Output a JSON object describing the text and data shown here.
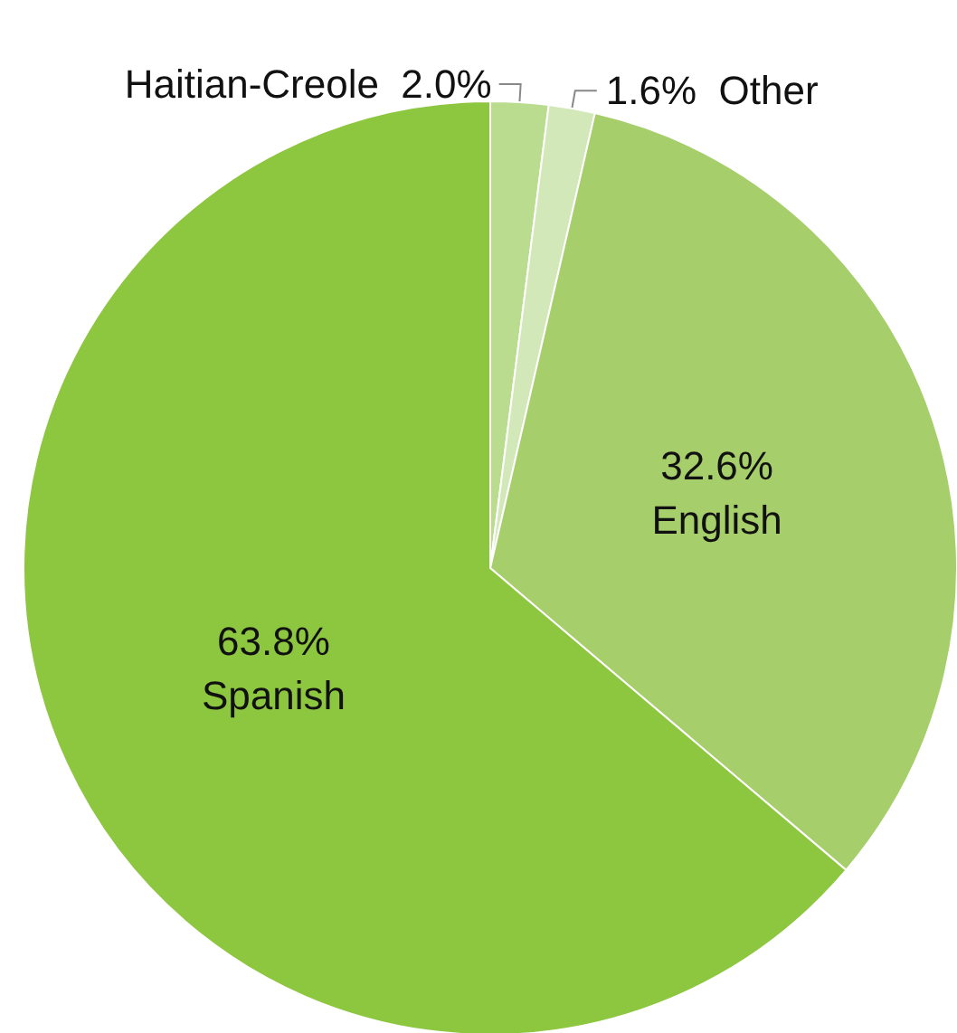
{
  "chart_data": {
    "type": "pie",
    "categories": [
      "Haitian-Creole",
      "Other",
      "English",
      "Spanish"
    ],
    "values": [
      2.0,
      1.6,
      32.6,
      63.8
    ],
    "colors": [
      "#b9dc8f",
      "#d3e8b8",
      "#a6ce6a",
      "#8dc63f"
    ],
    "value_labels": [
      "2.0%",
      "1.6%",
      "32.6%",
      "63.8%"
    ],
    "legend": false
  }
}
